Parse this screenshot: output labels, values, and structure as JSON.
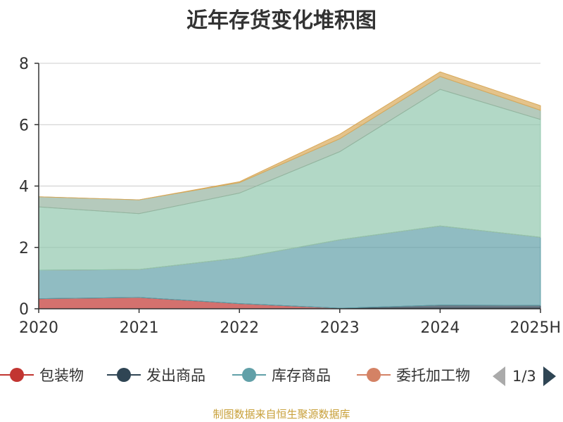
{
  "chart_data": {
    "type": "area",
    "stacked": true,
    "title": "近年存货变化堆积图",
    "categories": [
      "2020",
      "2021",
      "2022",
      "2023",
      "2024",
      "2025H"
    ],
    "ylim": [
      0,
      8
    ],
    "yticks": [
      "0",
      "2",
      "4",
      "6",
      "8"
    ],
    "grid": true,
    "legend_position": "bottom",
    "series": [
      {
        "name": "包装物",
        "color": "#c23531",
        "values": [
          0.33,
          0.37,
          0.17,
          0.02,
          0.02,
          0.02
        ]
      },
      {
        "name": "发出商品",
        "color": "#2f4554",
        "values": [
          0.0,
          0.0,
          0.0,
          0.0,
          0.1,
          0.09
        ]
      },
      {
        "name": "库存商品",
        "color": "#61a0a8",
        "values": [
          0.93,
          0.91,
          1.49,
          2.23,
          2.58,
          2.22
        ]
      },
      {
        "name": "委托加工物",
        "color": "#d48265",
        "values": [
          0.0,
          0.0,
          0.0,
          0.0,
          0.0,
          0.0
        ]
      },
      {
        "name": "",
        "color": "#91c7ae",
        "values": [
          2.06,
          1.82,
          2.11,
          2.87,
          4.45,
          3.84
        ]
      },
      {
        "name": "",
        "color": "#95b49f",
        "values": [
          0.33,
          0.45,
          0.34,
          0.42,
          0.42,
          0.3
        ]
      },
      {
        "name": "",
        "color": "#d9a95a",
        "values": [
          0.0,
          0.0,
          0.03,
          0.15,
          0.15,
          0.15
        ]
      }
    ]
  },
  "legend": {
    "items": [
      {
        "label": "包装物",
        "color": "#c23531"
      },
      {
        "label": "发出商品",
        "color": "#2f4554"
      },
      {
        "label": "库存商品",
        "color": "#61a0a8"
      },
      {
        "label": "委托加工物",
        "color": "#d48265"
      }
    ],
    "page_text": "1/3"
  },
  "footer": {
    "source": "制图数据来自恒生聚源数据库"
  }
}
